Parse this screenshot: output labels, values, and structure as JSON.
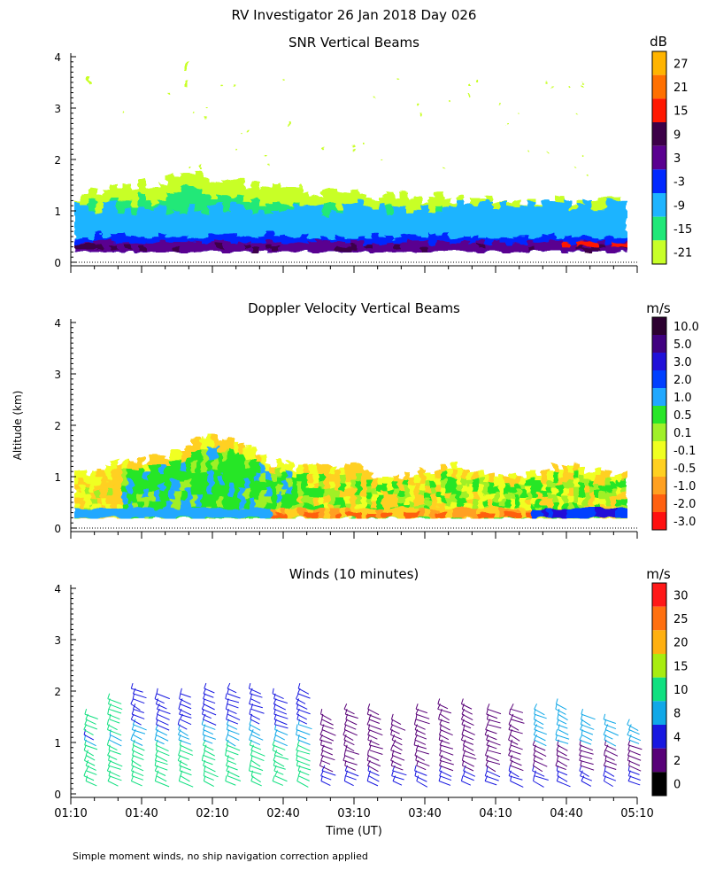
{
  "figure": {
    "title": "RV Investigator  26 Jan 2018 Day 026",
    "ylabel": "Altitude (km)",
    "xlabel": "Time (UT)",
    "footnote": "Simple moment winds, no ship navigation correction applied",
    "x_ticks": [
      "01:10",
      "01:40",
      "02:10",
      "02:40",
      "03:10",
      "03:40",
      "04:10",
      "04:40",
      "05:10"
    ],
    "y_ticks": [
      "0",
      "1",
      "2",
      "3",
      "4"
    ]
  },
  "chart_data": [
    {
      "type": "heatmap",
      "title": "SNR Vertical Beams",
      "unit": "dB",
      "x_range": [
        "01:10",
        "05:10"
      ],
      "ylim": [
        0,
        4
      ],
      "colorbar_labels": [
        "27",
        "21",
        "15",
        "9",
        "3",
        "-3",
        "-9",
        "-15",
        "-21"
      ],
      "colorbar_colors": [
        "#ffb400",
        "#ff7000",
        "#ff1800",
        "#3c0048",
        "#5a0090",
        "#0028ff",
        "#1eb4ff",
        "#20e878",
        "#c8ff28"
      ],
      "layers_km": {
        "strong_near_surface_top": 0.5,
        "moderate_top": 1.0,
        "weak_echo_top_max": 1.9,
        "surface_clutter_top": 0.2
      }
    },
    {
      "type": "heatmap",
      "title": "Doppler Velocity Vertical Beams",
      "unit": "m/s",
      "x_range": [
        "01:10",
        "05:10"
      ],
      "ylim": [
        0,
        4
      ],
      "colorbar_labels": [
        "10.0",
        "5.0",
        "3.0",
        "2.0",
        "1.0",
        "0.5",
        "0.1",
        "-0.1",
        "-0.5",
        "-1.0",
        "-2.0",
        "-3.0"
      ],
      "colorbar_colors": [
        "#2c0030",
        "#400080",
        "#2010d8",
        "#0040ff",
        "#20a8ff",
        "#28e628",
        "#a0f028",
        "#f0ff20",
        "#ffd020",
        "#ffa020",
        "#ff6010",
        "#ff1010"
      ],
      "echo_top_max_km": 1.85
    },
    {
      "type": "scatter",
      "title": "Winds (10 minutes)",
      "unit": "m/s",
      "x_range": [
        "01:10",
        "05:10"
      ],
      "ylim": [
        0,
        4
      ],
      "interval_minutes": 10,
      "profile_times": [
        "01:16",
        "01:26",
        "01:36",
        "01:46",
        "01:56",
        "02:06",
        "02:16",
        "02:26",
        "02:36",
        "02:46",
        "02:56",
        "03:06",
        "03:16",
        "03:26",
        "03:36",
        "03:46",
        "03:56",
        "04:06",
        "04:16",
        "04:26",
        "04:36",
        "04:46",
        "04:56",
        "05:06"
      ],
      "profile_top_km": [
        1.6,
        1.95,
        2.1,
        2.05,
        2.05,
        2.1,
        2.15,
        2.1,
        2.05,
        2.1,
        1.65,
        1.7,
        1.75,
        1.55,
        1.75,
        1.8,
        1.85,
        1.75,
        1.7,
        1.75,
        1.85,
        1.6,
        1.5,
        1.35
      ],
      "colorbar_labels": [
        "30",
        "25",
        "20",
        "15",
        "10",
        "8",
        "4",
        "2",
        "0"
      ],
      "colorbar_colors": [
        "#ff1818",
        "#ff7010",
        "#ffb010",
        "#a8ec10",
        "#10e080",
        "#10a8e8",
        "#1818e0",
        "#580078",
        "#000000"
      ]
    }
  ]
}
